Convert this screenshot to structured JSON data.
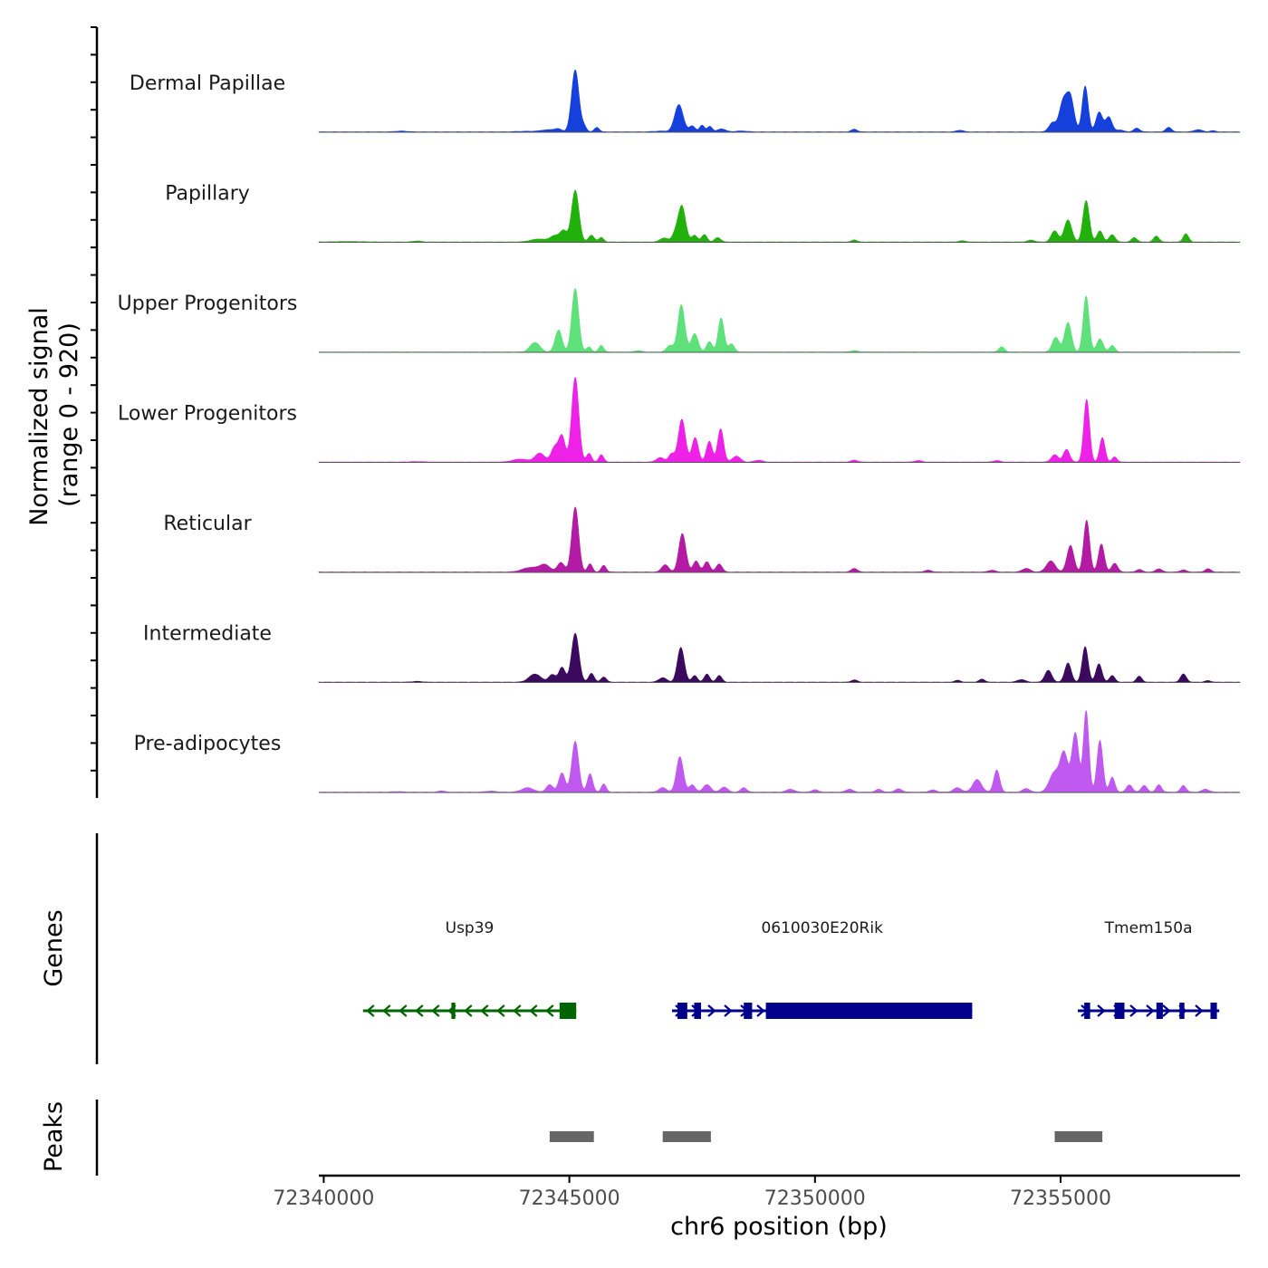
{
  "chart_data": {
    "type": "area",
    "y_axis_title_line1": "Normalized signal",
    "y_axis_title_line2": "(range 0 - 920)",
    "y_range": [
      0,
      920
    ],
    "x_axis_title": "chr6 position (bp)",
    "x_range": [
      72339900,
      72358650
    ],
    "x_ticks": [
      72340000,
      72345000,
      72350000,
      72355000
    ],
    "x_tick_labels": [
      "72340000",
      "72345000",
      "72350000",
      "72355000"
    ],
    "tracks": [
      {
        "name": "Dermal Papillae",
        "color": "#1640dc",
        "peaks": [
          [
            72341580,
            10,
            120
          ],
          [
            72344150,
            8,
            200
          ],
          [
            72344480,
            18,
            100
          ],
          [
            72344650,
            22,
            90
          ],
          [
            72344780,
            35,
            70
          ],
          [
            72345120,
            840,
            75
          ],
          [
            72345560,
            60,
            50
          ],
          [
            72345300,
            70,
            50
          ],
          [
            72346880,
            10,
            160
          ],
          [
            72347230,
            370,
            85
          ],
          [
            72347500,
            80,
            60
          ],
          [
            72347700,
            90,
            50
          ],
          [
            72347860,
            75,
            50
          ],
          [
            72348100,
            40,
            80
          ],
          [
            72348500,
            12,
            120
          ],
          [
            72350800,
            35,
            60
          ],
          [
            72352950,
            22,
            70
          ],
          [
            72355850,
            30,
            60
          ],
          [
            72354830,
            120,
            70
          ],
          [
            72355050,
            400,
            80
          ],
          [
            72355200,
            450,
            75
          ],
          [
            72355500,
            620,
            60
          ],
          [
            72355780,
            250,
            65
          ],
          [
            72355980,
            200,
            65
          ],
          [
            72356200,
            25,
            80
          ],
          [
            72356550,
            50,
            60
          ],
          [
            72357200,
            60,
            60
          ],
          [
            72357800,
            30,
            80
          ],
          [
            72358100,
            15,
            60
          ]
        ],
        "baseline": 4
      },
      {
        "name": "Papillary",
        "color": "#22b00c",
        "peaks": [
          [
            72340500,
            6,
            300
          ],
          [
            72341900,
            14,
            80
          ],
          [
            72344380,
            40,
            160
          ],
          [
            72344700,
            80,
            90
          ],
          [
            72344880,
            150,
            70
          ],
          [
            72345120,
            700,
            75
          ],
          [
            72345450,
            90,
            60
          ],
          [
            72345650,
            60,
            50
          ],
          [
            72346930,
            55,
            80
          ],
          [
            72347150,
            100,
            60
          ],
          [
            72347290,
            490,
            75
          ],
          [
            72347550,
            90,
            60
          ],
          [
            72347750,
            100,
            55
          ],
          [
            72348020,
            60,
            60
          ],
          [
            72350800,
            30,
            50
          ],
          [
            72353000,
            16,
            70
          ],
          [
            72354400,
            25,
            70
          ],
          [
            72354880,
            150,
            70
          ],
          [
            72355150,
            300,
            75
          ],
          [
            72355520,
            560,
            65
          ],
          [
            72355800,
            150,
            60
          ],
          [
            72356050,
            100,
            60
          ],
          [
            72356500,
            60,
            55
          ],
          [
            72356950,
            80,
            55
          ],
          [
            72357550,
            110,
            55
          ]
        ],
        "baseline": 3
      },
      {
        "name": "Upper Progenitors",
        "color": "#5ee07a",
        "peaks": [
          [
            72344300,
            130,
            100
          ],
          [
            72344780,
            300,
            70
          ],
          [
            72345120,
            860,
            70
          ],
          [
            72345400,
            70,
            50
          ],
          [
            72345650,
            90,
            50
          ],
          [
            72346400,
            20,
            70
          ],
          [
            72347050,
            90,
            70
          ],
          [
            72347280,
            640,
            70
          ],
          [
            72347550,
            250,
            70
          ],
          [
            72347850,
            140,
            60
          ],
          [
            72348090,
            460,
            60
          ],
          [
            72348300,
            110,
            60
          ],
          [
            72350800,
            20,
            70
          ],
          [
            72353800,
            70,
            60
          ],
          [
            72354900,
            200,
            70
          ],
          [
            72355150,
            400,
            70
          ],
          [
            72355520,
            760,
            60
          ],
          [
            72355800,
            180,
            65
          ],
          [
            72356050,
            90,
            55
          ]
        ],
        "baseline": 3
      },
      {
        "name": "Lower Progenitors",
        "color": "#ee22e6",
        "peaks": [
          [
            72341900,
            6,
            150
          ],
          [
            72344000,
            40,
            150
          ],
          [
            72344400,
            120,
            100
          ],
          [
            72344700,
            200,
            70
          ],
          [
            72344850,
            350,
            65
          ],
          [
            72345120,
            1150,
            72
          ],
          [
            72345400,
            120,
            50
          ],
          [
            72345650,
            100,
            50
          ],
          [
            72346850,
            60,
            80
          ],
          [
            72347080,
            110,
            60
          ],
          [
            72347290,
            580,
            72
          ],
          [
            72347560,
            330,
            65
          ],
          [
            72347850,
            280,
            60
          ],
          [
            72348080,
            450,
            60
          ],
          [
            72348400,
            80,
            80
          ],
          [
            72348850,
            25,
            80
          ],
          [
            72350800,
            25,
            70
          ],
          [
            72352100,
            20,
            70
          ],
          [
            72353700,
            20,
            70
          ],
          [
            72354880,
            100,
            70
          ],
          [
            72355120,
            170,
            65
          ],
          [
            72355530,
            850,
            58
          ],
          [
            72355850,
            330,
            55
          ],
          [
            72356100,
            70,
            50
          ]
        ],
        "baseline": 3
      },
      {
        "name": "Reticular",
        "color": "#b31ba4",
        "peaks": [
          [
            72344200,
            60,
            160
          ],
          [
            72344500,
            95,
            110
          ],
          [
            72344830,
            130,
            70
          ],
          [
            72345120,
            880,
            70
          ],
          [
            72345420,
            110,
            50
          ],
          [
            72345700,
            90,
            50
          ],
          [
            72346950,
            100,
            70
          ],
          [
            72347300,
            520,
            72
          ],
          [
            72347580,
            150,
            60
          ],
          [
            72347800,
            140,
            60
          ],
          [
            72348050,
            110,
            60
          ],
          [
            72350800,
            50,
            60
          ],
          [
            72352300,
            25,
            70
          ],
          [
            72353600,
            25,
            70
          ],
          [
            72354300,
            50,
            80
          ],
          [
            72354800,
            150,
            90
          ],
          [
            72355200,
            360,
            70
          ],
          [
            72355530,
            700,
            60
          ],
          [
            72355830,
            380,
            60
          ],
          [
            72356100,
            120,
            60
          ],
          [
            72356600,
            35,
            60
          ],
          [
            72357000,
            45,
            60
          ],
          [
            72357500,
            30,
            60
          ],
          [
            72358000,
            45,
            60
          ]
        ],
        "baseline": 4
      },
      {
        "name": "Intermediate",
        "color": "#3b0a5e",
        "peaks": [
          [
            72341900,
            10,
            100
          ],
          [
            72344300,
            110,
            120
          ],
          [
            72344650,
            100,
            70
          ],
          [
            72344850,
            200,
            65
          ],
          [
            72345120,
            660,
            75
          ],
          [
            72345450,
            120,
            55
          ],
          [
            72345700,
            70,
            55
          ],
          [
            72346900,
            60,
            80
          ],
          [
            72347270,
            470,
            70
          ],
          [
            72347550,
            90,
            55
          ],
          [
            72347800,
            110,
            55
          ],
          [
            72348050,
            90,
            55
          ],
          [
            72350800,
            30,
            60
          ],
          [
            72352900,
            25,
            60
          ],
          [
            72353400,
            40,
            60
          ],
          [
            72354200,
            35,
            80
          ],
          [
            72354750,
            160,
            70
          ],
          [
            72355150,
            260,
            65
          ],
          [
            72355500,
            480,
            60
          ],
          [
            72355780,
            250,
            60
          ],
          [
            72356050,
            90,
            55
          ],
          [
            72356600,
            80,
            55
          ],
          [
            72357500,
            110,
            60
          ],
          [
            72358000,
            20,
            60
          ]
        ],
        "baseline": 3
      },
      {
        "name": "Pre-adipocytes",
        "color": "#c059f0",
        "peaks": [
          [
            72341500,
            8,
            100
          ],
          [
            72342400,
            18,
            60
          ],
          [
            72343400,
            14,
            100
          ],
          [
            72344150,
            60,
            120
          ],
          [
            72344600,
            100,
            70
          ],
          [
            72344850,
            260,
            65
          ],
          [
            72345120,
            690,
            70
          ],
          [
            72345420,
            250,
            55
          ],
          [
            72345700,
            110,
            50
          ],
          [
            72346900,
            60,
            80
          ],
          [
            72347250,
            480,
            70
          ],
          [
            72347500,
            100,
            60
          ],
          [
            72347800,
            100,
            80
          ],
          [
            72348150,
            70,
            70
          ],
          [
            72348550,
            60,
            60
          ],
          [
            72349500,
            40,
            80
          ],
          [
            72350000,
            35,
            60
          ],
          [
            72350700,
            40,
            70
          ],
          [
            72351300,
            40,
            60
          ],
          [
            72351700,
            45,
            70
          ],
          [
            72352400,
            30,
            70
          ],
          [
            72352900,
            60,
            80
          ],
          [
            72353300,
            170,
            90
          ],
          [
            72353700,
            300,
            60
          ],
          [
            72354300,
            50,
            70
          ],
          [
            72354870,
            260,
            100
          ],
          [
            72355070,
            520,
            80
          ],
          [
            72355300,
            800,
            70
          ],
          [
            72355520,
            1100,
            55
          ],
          [
            72355800,
            700,
            60
          ],
          [
            72356050,
            200,
            55
          ],
          [
            72356400,
            100,
            60
          ],
          [
            72356700,
            90,
            60
          ],
          [
            72357000,
            100,
            55
          ],
          [
            72357500,
            90,
            55
          ],
          [
            72357950,
            40,
            70
          ]
        ],
        "baseline": 4
      }
    ],
    "genes_track_label": "Genes",
    "genes": [
      {
        "name": "Usp39",
        "strand": "-",
        "color": "#006400",
        "start": 72340800,
        "end": 72345140,
        "exons": [
          [
            72342600,
            72342680
          ],
          [
            72344800,
            72345140
          ]
        ]
      },
      {
        "name": "0610030E20Rik",
        "strand": "+",
        "color": "#00008b",
        "start": 72347090,
        "end": 72353200,
        "exons": [
          [
            72347200,
            72347400
          ],
          [
            72347540,
            72347680
          ],
          [
            72348550,
            72348720
          ],
          [
            72349000,
            72353200
          ]
        ]
      },
      {
        "name": "Tmem150a",
        "strand": "+",
        "color": "#00008b",
        "start": 72355350,
        "end": 72358230,
        "exons": [
          [
            72355480,
            72355600
          ],
          [
            72356100,
            72356300
          ],
          [
            72356950,
            72357080
          ],
          [
            72357420,
            72357520
          ],
          [
            72358050,
            72358180
          ]
        ]
      }
    ],
    "peaks_track_label": "Peaks",
    "called_peaks": [
      [
        72344600,
        72345500
      ],
      [
        72346900,
        72347880
      ],
      [
        72354880,
        72355850
      ]
    ],
    "peak_color": "#666666"
  }
}
